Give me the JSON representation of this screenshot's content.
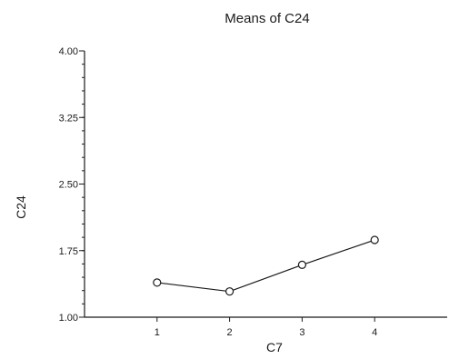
{
  "chart_data": {
    "type": "line",
    "title": "Means of C24",
    "xlabel": "C7",
    "ylabel": "C24",
    "x": [
      1,
      2,
      3,
      4
    ],
    "x_tick_labels": [
      "1",
      "2",
      "3",
      "4"
    ],
    "xlim": [
      0,
      5
    ],
    "y_tick_values": [
      1.0,
      1.75,
      2.5,
      3.25,
      4.0
    ],
    "y_tick_labels": [
      "1.00",
      "1.75",
      "2.50",
      "3.25",
      "4.00"
    ],
    "ylim": [
      1.0,
      4.0
    ],
    "y_minor_step": 0.15,
    "series": [
      {
        "values": [
          1.39,
          1.29,
          1.59,
          1.87
        ]
      }
    ],
    "grid": false,
    "marker": "open-circle",
    "line_color": "#1a1a1a"
  }
}
